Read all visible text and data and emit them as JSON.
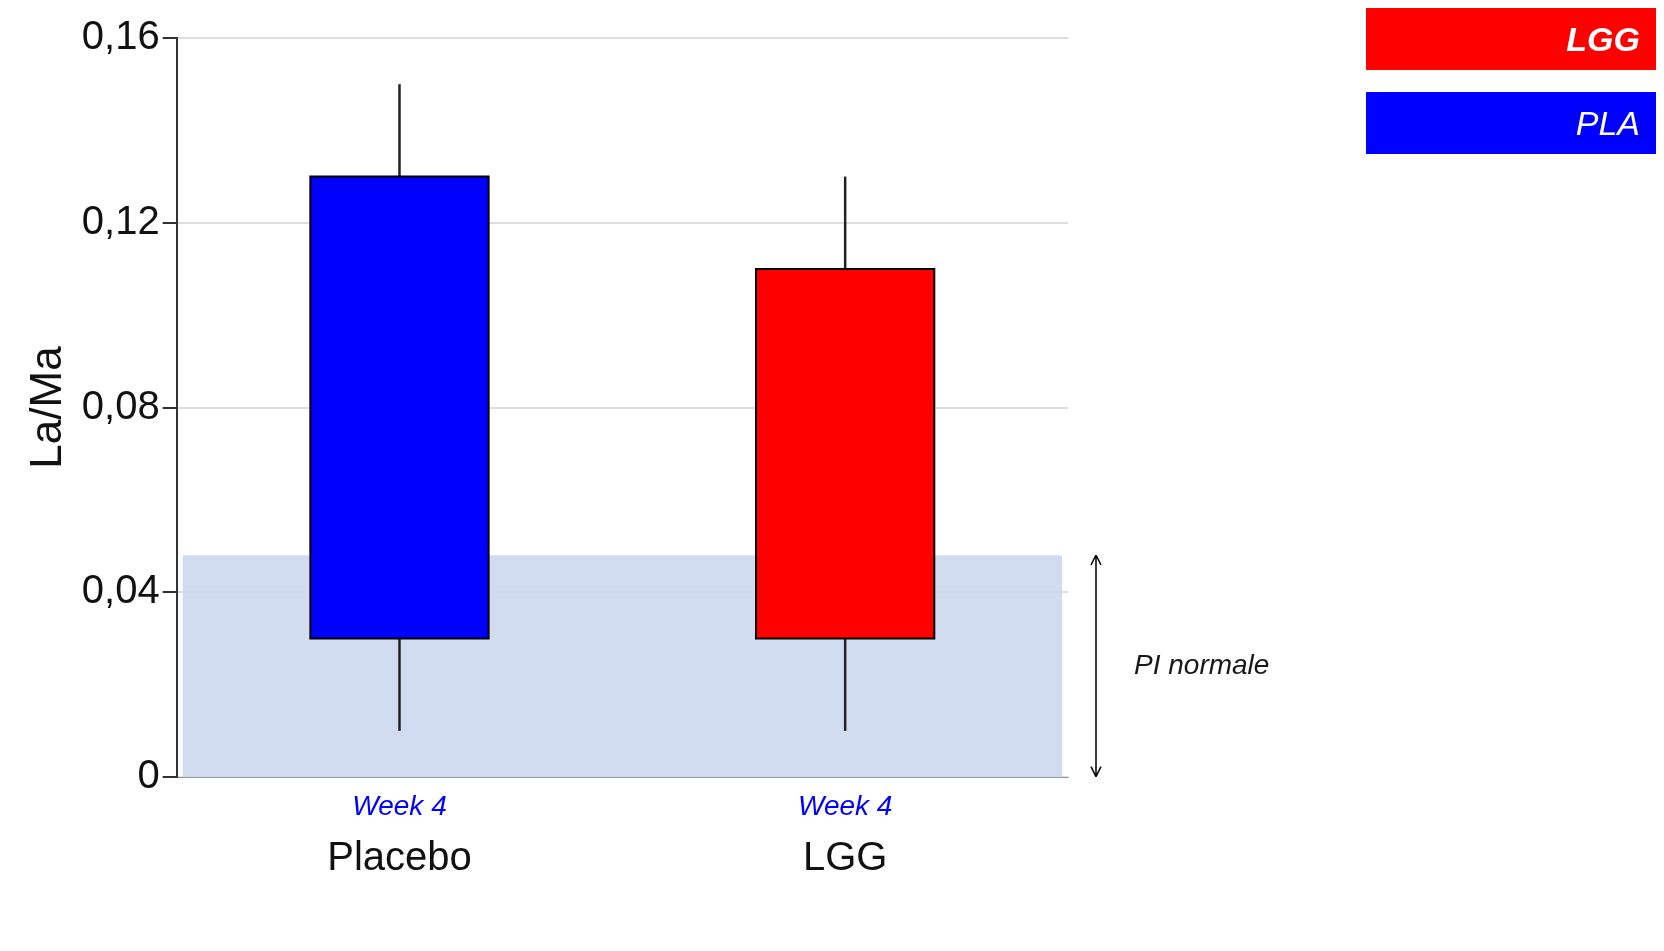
{
  "chart_data": {
    "type": "candlestick",
    "categories": [
      "Placebo",
      "LGG"
    ],
    "series": [
      {
        "name": "LGG",
        "color": "#ff0000",
        "ohlc": [
          null,
          [
            0.03,
            0.13,
            0.01,
            0.11
          ]
        ]
      },
      {
        "name": "PLA",
        "color": "#0000ff",
        "ohlc": [
          [
            0.03,
            0.15,
            0.01,
            0.13
          ],
          null
        ]
      }
    ],
    "ylabel": "La/Ma",
    "ylim": [
      0,
      0.16
    ],
    "yticks": [
      {
        "value": 0,
        "label": "0"
      },
      {
        "value": 0.04,
        "label": "0,04"
      },
      {
        "value": 0.08,
        "label": "0,08"
      },
      {
        "value": 0.12,
        "label": "0,12"
      },
      {
        "value": 0.16,
        "label": "0,16"
      }
    ],
    "grid": "y",
    "legend": "top right",
    "bands": [
      {
        "axis": "y",
        "from": 0,
        "to": 0.048,
        "label": "PI normale",
        "color": "#ccd8f0"
      }
    ],
    "annotations": [
      "Week 4",
      "Week 4"
    ]
  }
}
